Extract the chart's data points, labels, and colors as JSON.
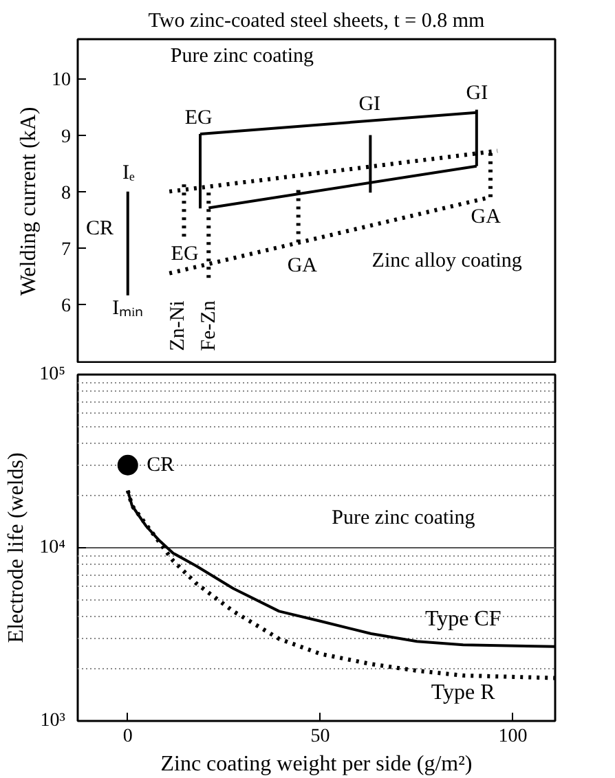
{
  "chart_data": [
    {
      "type": "line",
      "title": "Two zinc-coated steel sheets, t = 0.8 mm",
      "ylabel": "Welding current (kA)",
      "xlim": [
        -13,
        111
      ],
      "ylim": [
        4.95,
        10.7
      ],
      "yticks": [
        6,
        7,
        8,
        9,
        10
      ],
      "tick_labels": "y",
      "line_style": "solid",
      "marker": "none",
      "grid": false,
      "series": [
        {
          "color": "#000000",
          "x": [
            0,
            0
          ],
          "values": [
            6.16,
            8.0
          ]
        },
        {
          "color": "#000000",
          "x": [
            18.8,
            18.8
          ],
          "values": [
            7.7,
            9.02
          ]
        },
        {
          "color": "#000000",
          "x": [
            63,
            63
          ],
          "values": [
            7.98,
            9.0
          ]
        },
        {
          "color": "#000000",
          "x": [
            90.6,
            90.6
          ],
          "values": [
            8.45,
            9.45
          ]
        },
        {
          "color": "#000000",
          "x": [
            14.6,
            14.6
          ],
          "values": [
            7.2,
            8.14
          ],
          "line_style": "dotted"
        },
        {
          "color": "#000000",
          "x": [
            21,
            21
          ],
          "values": [
            6.47,
            8.0
          ],
          "line_style": "dotted"
        },
        {
          "color": "#000000",
          "x": [
            44.3,
            44.3
          ],
          "values": [
            7.1,
            8.05
          ],
          "line_style": "dotted"
        },
        {
          "color": "#000000",
          "x": [
            94.2,
            94.2
          ],
          "values": [
            7.9,
            8.73
          ],
          "line_style": "dotted"
        },
        {
          "color": "#000000",
          "x": [
            18.8,
            90.6
          ],
          "values": [
            9.02,
            9.4
          ]
        },
        {
          "color": "#000000",
          "x": [
            21,
            90.6
          ],
          "values": [
            7.71,
            8.45
          ]
        },
        {
          "color": "#000000",
          "x": [
            10.8,
            96
          ],
          "values": [
            8.0,
            8.72
          ],
          "line_style": "dotted"
        },
        {
          "color": "#000000",
          "x": [
            10.8,
            94.2
          ],
          "values": [
            6.55,
            7.9
          ],
          "line_style": "dotted"
        }
      ],
      "annotations": [
        "Pure zinc coating",
        "Zinc alloy coating",
        "EG",
        "GI",
        "GI",
        "GA",
        "GA",
        "EG",
        "CR",
        "Iₑ",
        "Iₘᵢₙ",
        "Zn-Ni",
        "Fe-Zn"
      ]
    },
    {
      "type": "line",
      "xlabel": "Zinc coating weight per side (g/m²)",
      "ylabel": "Electrode life (welds)",
      "log": "y",
      "xlim": [
        -13,
        111
      ],
      "xticks": [
        0,
        50,
        100
      ],
      "ylim": [
        1000,
        100000
      ],
      "yticks": [
        {
          "value": 1000,
          "label": "10³"
        },
        {
          "value": 10000,
          "label": "10⁴"
        },
        {
          "value": 100000,
          "label": "10⁵"
        }
      ],
      "grid": "y",
      "marker": "none",
      "series": [
        {
          "name": "Type CF",
          "color": "#000000",
          "line_style": "solid",
          "x": [
            0,
            1.1,
            4.7,
            8.2,
            11.8,
            17.8,
            27.4,
            39.3,
            50,
            63.2,
            75.1,
            87.1,
            111
          ],
          "values": [
            21400,
            17500,
            13400,
            11000,
            9300,
            7850,
            5820,
            4300,
            3770,
            3190,
            2880,
            2750,
            2690
          ]
        },
        {
          "name": "Type R",
          "color": "#000000",
          "line_style": "dotted",
          "x": [
            0,
            1.1,
            5.9,
            11.8,
            17.8,
            27.4,
            39.3,
            50,
            63.2,
            75.1,
            87.1,
            111
          ],
          "values": [
            21400,
            17500,
            12600,
            8400,
            6220,
            4300,
            2980,
            2440,
            2130,
            1950,
            1830,
            1770
          ]
        },
        {
          "type": "scatter",
          "color": "#000000",
          "marker": "circle",
          "x": [
            0
          ],
          "values": [
            30000
          ]
        }
      ],
      "annotations": [
        "CR",
        "Pure zinc coating"
      ]
    }
  ]
}
